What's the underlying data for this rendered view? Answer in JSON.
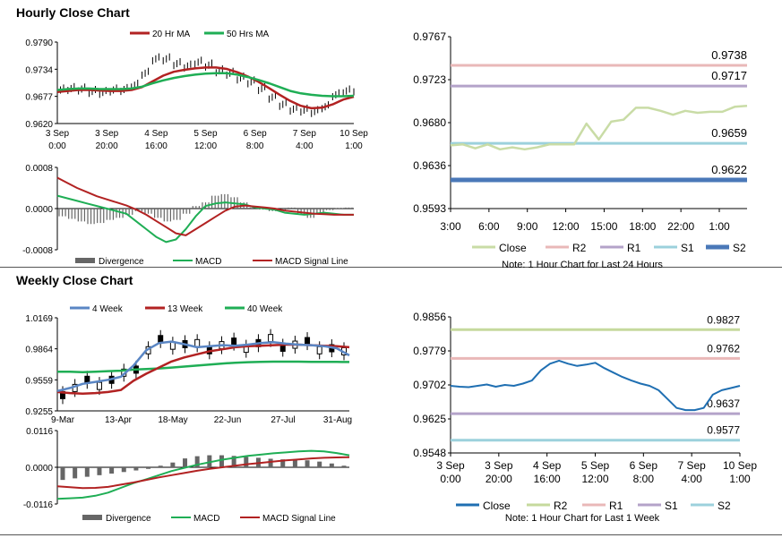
{
  "sections": {
    "hourly_title": "Hourly Close Chart",
    "weekly_title": "Weekly Close Chart"
  },
  "colors": {
    "ma20": "#b22222",
    "ma50": "#1fae55",
    "macd": "#1fae55",
    "signal": "#b22222",
    "divergence": "#666666",
    "close_hourly": "#c9dca6",
    "r2": "#e9b8b8",
    "r1": "#b4a3c9",
    "s1": "#9cd1dc",
    "s2": "#4a78b8",
    "close_weekly": "#1f6fb2",
    "r2_weekly": "#c6d99d",
    "r1_weekly": "#e9b8b8",
    "s1_weekly": "#b4a3c9",
    "s2_weekly": "#9cd1dc",
    "ma4": "#5a86c4",
    "ma13": "#b22222",
    "ma40": "#1fae55"
  },
  "chart_data": [
    {
      "id": "hourly_price",
      "type": "line",
      "legend": [
        "20 Hr MA",
        "50 Hrs MA"
      ],
      "x_ticks": [
        [
          "3 Sep",
          "0:00"
        ],
        [
          "3 Sep",
          "20:00"
        ],
        [
          "4 Sep",
          "16:00"
        ],
        [
          "5 Sep",
          "12:00"
        ],
        [
          "6 Sep",
          "8:00"
        ],
        [
          "7 Sep",
          "4:00"
        ],
        [
          "10 Sep",
          "1:00"
        ]
      ],
      "y_ticks": [
        "0.9790",
        "0.9734",
        "0.9677",
        "0.9620"
      ],
      "ylim": [
        0.962,
        0.979
      ],
      "series": [
        {
          "name": "20 Hr MA",
          "values": [
            0.9686,
            0.9688,
            0.969,
            0.969,
            0.9689,
            0.9688,
            0.9688,
            0.969,
            0.9696,
            0.9708,
            0.972,
            0.9728,
            0.9732,
            0.9735,
            0.9737,
            0.9737,
            0.9734,
            0.9727,
            0.9718,
            0.9707,
            0.9694,
            0.968,
            0.9667,
            0.9657,
            0.9652,
            0.9653,
            0.966,
            0.967,
            0.9676
          ]
        },
        {
          "name": "50 Hrs MA",
          "values": [
            0.969,
            0.9692,
            0.9693,
            0.9693,
            0.9692,
            0.9692,
            0.9692,
            0.9693,
            0.9697,
            0.9704,
            0.971,
            0.9715,
            0.9719,
            0.9722,
            0.9724,
            0.9725,
            0.9725,
            0.9722,
            0.9717,
            0.9711,
            0.9704,
            0.9696,
            0.9688,
            0.9683,
            0.968,
            0.9678,
            0.9677,
            0.9677,
            0.9678
          ]
        },
        {
          "name": "Close",
          "values": [
            0.969,
            0.9693,
            0.9692,
            0.9687,
            0.9685,
            0.969,
            0.9691,
            0.97,
            0.9725,
            0.9755,
            0.9755,
            0.9745,
            0.974,
            0.9748,
            0.9742,
            0.973,
            0.9725,
            0.9715,
            0.9707,
            0.9693,
            0.9675,
            0.966,
            0.965,
            0.9648,
            0.9645,
            0.9655,
            0.968,
            0.9688,
            0.969
          ]
        }
      ]
    },
    {
      "id": "hourly_macd",
      "type": "line",
      "legend": [
        "Divergence",
        "MACD",
        "MACD Signal Line"
      ],
      "y_ticks": [
        "0.0008",
        "0.0000",
        "-0.0008"
      ],
      "ylim": [
        -0.0008,
        0.0008
      ],
      "series": [
        {
          "name": "Divergence",
          "values": [
            -0.00015,
            -0.0002,
            -0.00025,
            -0.0003,
            -0.00028,
            -0.00022,
            -0.00018,
            -0.00012,
            -5e-05,
            -0.0001,
            -0.00018,
            -0.00025,
            -0.00022,
            -0.0001,
            5e-05,
            0.00012,
            0.00025,
            0.00028,
            0.00022,
            0.00012,
            2e-05,
            -2e-05,
            -5e-05,
            -3e-05,
            2e-05,
            -0.00012,
            -0.00018,
            -8e-05,
            -3e-05,
            1e-05,
            2e-05
          ]
        },
        {
          "name": "MACD",
          "values": [
            0.00025,
            0.0002,
            0.00015,
            0.0001,
            5e-05,
            0.0,
            -5e-05,
            -0.0001,
            -0.00025,
            -0.0004,
            -0.00055,
            -0.00065,
            -0.0006,
            -0.0004,
            -0.00015,
            5e-05,
            0.0001,
            0.00012,
            0.0001,
            8e-05,
            2e-05,
            0.0,
            -2e-05,
            -8e-05,
            -0.0001,
            -0.00012,
            -0.0001,
            -8e-05,
            -0.0001,
            -0.00012,
            -0.00012
          ]
        },
        {
          "name": "MACD Signal Line",
          "values": [
            0.0006,
            0.0005,
            0.0004,
            0.00032,
            0.00024,
            0.00018,
            0.00012,
            6e-05,
            -2e-05,
            -0.00012,
            -0.00024,
            -0.00036,
            -0.00048,
            -0.00052,
            -0.0004,
            -0.00028,
            -0.00016,
            -4e-05,
            4e-05,
            6e-05,
            4e-05,
            2e-05,
            0.0,
            -4e-05,
            -6e-05,
            -8e-05,
            -0.0001,
            -0.00011,
            -0.00012,
            -0.00012,
            -0.00012
          ]
        }
      ]
    },
    {
      "id": "hourly_close_levels",
      "type": "line",
      "x_ticks": [
        "3:00",
        "6:00",
        "9:00",
        "12:00",
        "15:00",
        "18:00",
        "22:00",
        "1:00"
      ],
      "y_ticks": [
        "0.9767",
        "0.9723",
        "0.9680",
        "0.9636",
        "0.9593"
      ],
      "ylim": [
        0.9593,
        0.9767
      ],
      "close": [
        0.9657,
        0.9658,
        0.9654,
        0.9658,
        0.9653,
        0.9655,
        0.9653,
        0.9655,
        0.9658,
        0.9658,
        0.9658,
        0.9679,
        0.9663,
        0.9681,
        0.9683,
        0.9695,
        0.9695,
        0.9692,
        0.9688,
        0.9692,
        0.969,
        0.9691,
        0.9691,
        0.9696,
        0.9697
      ],
      "levels": [
        {
          "name": "R2",
          "value": 0.9738,
          "label": "0.9738"
        },
        {
          "name": "R1",
          "value": 0.9717,
          "label": "0.9717"
        },
        {
          "name": "S1",
          "value": 0.9659,
          "label": "0.9659"
        },
        {
          "name": "S2",
          "value": 0.9622,
          "label": "0.9622"
        }
      ],
      "legend": [
        "Close",
        "R2",
        "R1",
        "S1",
        "S2"
      ],
      "note": "Note: 1 Hour Chart for Last 24 Hours"
    },
    {
      "id": "weekly_price",
      "type": "line",
      "legend": [
        "4 Week",
        "13 Week",
        "40 Week"
      ],
      "x_ticks": [
        "9-Mar",
        "13-Apr",
        "18-May",
        "22-Jun",
        "27-Jul",
        "31-Aug"
      ],
      "y_ticks": [
        "1.0169",
        "0.9864",
        "0.9559",
        "0.9255"
      ],
      "ylim": [
        0.9255,
        1.0169
      ],
      "series": [
        {
          "name": "4 Week",
          "values": [
            0.945,
            0.948,
            0.952,
            0.954,
            0.956,
            0.959,
            0.97,
            0.985,
            0.992,
            0.9935,
            0.991,
            0.988,
            0.989,
            0.99,
            0.9895,
            0.9905,
            0.992,
            0.993,
            0.9915,
            0.9905,
            0.99,
            0.989,
            0.987,
            0.98
          ]
        },
        {
          "name": "13 Week",
          "values": [
            0.944,
            0.943,
            0.9425,
            0.943,
            0.944,
            0.946,
            0.955,
            0.962,
            0.968,
            0.974,
            0.978,
            0.981,
            0.984,
            0.986,
            0.988,
            0.989,
            0.9895,
            0.99,
            0.9905,
            0.9905,
            0.99,
            0.9895,
            0.989,
            0.988
          ]
        },
        {
          "name": "40 Week",
          "values": [
            0.964,
            0.964,
            0.9635,
            0.964,
            0.9645,
            0.965,
            0.966,
            0.9665,
            0.9672,
            0.968,
            0.969,
            0.97,
            0.971,
            0.972,
            0.9728,
            0.9733,
            0.9736,
            0.9738,
            0.9738,
            0.9738,
            0.9737,
            0.9736,
            0.9736,
            0.9735
          ]
        }
      ]
    },
    {
      "id": "weekly_macd",
      "type": "line",
      "legend": [
        "Divergence",
        "MACD",
        "MACD Signal Line"
      ],
      "y_ticks": [
        "0.0116",
        "0.0000",
        "-0.0116"
      ],
      "ylim": [
        -0.0116,
        0.0116
      ],
      "series": [
        {
          "name": "Divergence",
          "values": [
            -0.004,
            -0.0035,
            -0.003,
            -0.0025,
            -0.002,
            -0.0015,
            -0.001,
            -0.0005,
            0.0005,
            0.0015,
            0.0028,
            0.0035,
            0.0038,
            0.0038,
            0.0036,
            0.0033,
            0.003,
            0.0027,
            0.0025,
            0.0023,
            0.0022,
            0.0018,
            0.0012,
            0.0005
          ]
        },
        {
          "name": "MACD",
          "values": [
            -0.01,
            -0.0098,
            -0.0096,
            -0.009,
            -0.008,
            -0.0065,
            -0.005,
            -0.0038,
            -0.0025,
            -0.0012,
            -0.0002,
            0.0008,
            0.0016,
            0.0024,
            0.003,
            0.0036,
            0.004,
            0.0044,
            0.0047,
            0.005,
            0.0052,
            0.005,
            0.0045,
            0.0038
          ]
        },
        {
          "name": "MACD Signal Line",
          "values": [
            -0.006,
            -0.0063,
            -0.0066,
            -0.0065,
            -0.0062,
            -0.0055,
            -0.0048,
            -0.004,
            -0.0032,
            -0.0025,
            -0.0018,
            -0.0011,
            -0.0005,
            0.0,
            0.0005,
            0.001,
            0.0014,
            0.0018,
            0.0022,
            0.0025,
            0.0028,
            0.003,
            0.0031,
            0.0032
          ]
        }
      ]
    },
    {
      "id": "weekly_close_levels",
      "type": "line",
      "x_ticks": [
        [
          "3 Sep",
          "0:00"
        ],
        [
          "3 Sep",
          "20:00"
        ],
        [
          "4 Sep",
          "16:00"
        ],
        [
          "5 Sep",
          "12:00"
        ],
        [
          "6 Sep",
          "8:00"
        ],
        [
          "7 Sep",
          "4:00"
        ],
        [
          "10 Sep",
          "1:00"
        ]
      ],
      "y_ticks": [
        "0.9856",
        "0.9779",
        "0.9702",
        "0.9625",
        "0.9548"
      ],
      "ylim": [
        0.9548,
        0.9856
      ],
      "close": [
        0.97,
        0.9698,
        0.9697,
        0.97,
        0.9703,
        0.9698,
        0.9702,
        0.97,
        0.9705,
        0.9712,
        0.9735,
        0.975,
        0.9757,
        0.975,
        0.9745,
        0.9748,
        0.9752,
        0.974,
        0.973,
        0.972,
        0.9712,
        0.9705,
        0.97,
        0.969,
        0.967,
        0.965,
        0.9645,
        0.9645,
        0.965,
        0.968,
        0.969,
        0.9695,
        0.97
      ],
      "levels": [
        {
          "name": "R2",
          "value": 0.9827,
          "label": "0.9827"
        },
        {
          "name": "R1",
          "value": 0.9762,
          "label": "0.9762"
        },
        {
          "name": "S1",
          "value": 0.9637,
          "label": "0.9637"
        },
        {
          "name": "S2",
          "value": 0.9577,
          "label": "0.9577"
        }
      ],
      "legend": [
        "Close",
        "R2",
        "R1",
        "S1",
        "S2"
      ],
      "note": "Note: 1 Hour Chart for Last 1 Week"
    }
  ]
}
